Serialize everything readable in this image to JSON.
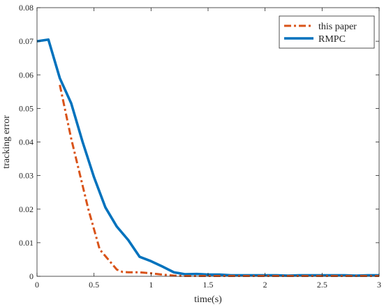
{
  "chart_data": {
    "type": "line",
    "xlabel": "time(s)",
    "ylabel": "tracking error",
    "xlim": [
      0,
      3
    ],
    "ylim": [
      0,
      0.08
    ],
    "x_ticks": [
      0,
      0.5,
      1,
      1.5,
      2,
      2.5,
      3
    ],
    "x_tick_labels": [
      "0",
      "0.5",
      "1",
      "1.5",
      "2",
      "2.5",
      "3"
    ],
    "y_ticks": [
      0,
      0.01,
      0.02,
      0.03,
      0.04,
      0.05,
      0.06,
      0.07,
      0.08
    ],
    "y_tick_labels": [
      "0",
      "0.01",
      "0.02",
      "0.03",
      "0.04",
      "0.05",
      "0.06",
      "0.07",
      "0.08"
    ],
    "grid": false,
    "legend_position": "top-right",
    "series": [
      {
        "name": "this paper",
        "color": "#D95319",
        "line_style": "dash-dot",
        "x": [
          0.2,
          0.25,
          0.3,
          0.35,
          0.4,
          0.45,
          0.5,
          0.55,
          0.6,
          0.65,
          0.7,
          0.75,
          0.8,
          0.9,
          1.0,
          1.1,
          1.2,
          1.3,
          1.4,
          1.5,
          1.6,
          1.7,
          1.8,
          1.9,
          2.0,
          2.1,
          2.2,
          2.3,
          2.4,
          2.5,
          2.6,
          2.7,
          2.8,
          2.9,
          3.0
        ],
        "y": [
          0.057,
          0.049,
          0.041,
          0.034,
          0.027,
          0.02,
          0.014,
          0.008,
          0.006,
          0.004,
          0.002,
          0.0013,
          0.0012,
          0.0012,
          0.0009,
          0.0005,
          0.0002,
          0.0001,
          0.0001,
          0.0001,
          0.0001,
          0.0001,
          0.0001,
          0.0001,
          0.0001,
          0.0001,
          0.0001,
          0.0001,
          0.0001,
          0.0001,
          0.0001,
          0.0001,
          0.0001,
          0.0001,
          0.0001
        ]
      },
      {
        "name": "RMPC",
        "color": "#0072BD",
        "line_style": "solid",
        "x": [
          0,
          0.1,
          0.2,
          0.3,
          0.4,
          0.5,
          0.6,
          0.7,
          0.8,
          0.9,
          1.0,
          1.1,
          1.2,
          1.3,
          1.4,
          1.5,
          1.6,
          1.7,
          1.8,
          1.9,
          2.0,
          2.1,
          2.2,
          2.3,
          2.4,
          2.5,
          2.6,
          2.7,
          2.8,
          2.9,
          3.0
        ],
        "y": [
          0.07,
          0.0705,
          0.059,
          0.0515,
          0.04,
          0.0295,
          0.0205,
          0.0148,
          0.0108,
          0.0058,
          0.0045,
          0.0029,
          0.0012,
          0.0006,
          0.0007,
          0.0005,
          0.0005,
          0.0003,
          0.0003,
          0.0003,
          0.0003,
          0.0003,
          0.0002,
          0.0003,
          0.0003,
          0.0003,
          0.0003,
          0.0003,
          0.0002,
          0.0003,
          0.0003
        ]
      }
    ]
  }
}
